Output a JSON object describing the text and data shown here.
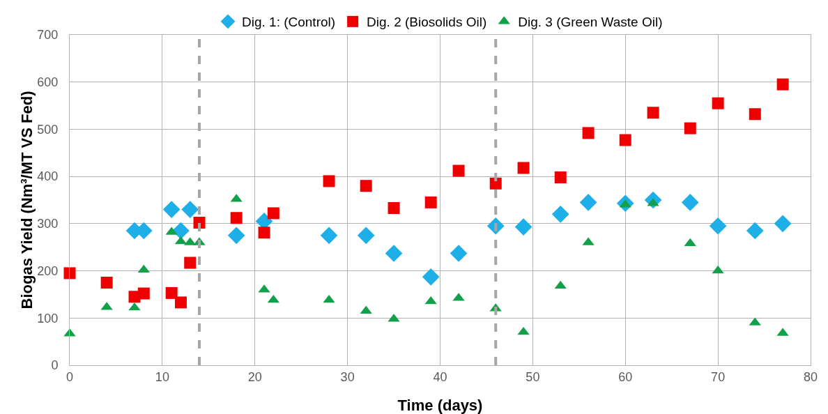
{
  "chart_data": {
    "type": "scatter",
    "xlabel": "Time (days)",
    "ylabel": "Biogas Yield (Nm³/MT VS Fed)",
    "xlim": [
      0,
      80
    ],
    "xticks": [
      0,
      10,
      20,
      30,
      40,
      50,
      60,
      70,
      80
    ],
    "ylim": [
      0,
      700
    ],
    "yticks": [
      0,
      100,
      200,
      300,
      400,
      500,
      600,
      700
    ],
    "grid": true,
    "legend": "top",
    "series": [
      {
        "name": "Dig. 1: (Control)",
        "color": "#1eaee8",
        "marker": "diamond",
        "x": [
          7,
          8,
          11,
          12,
          13,
          18,
          21,
          28,
          32,
          35,
          39,
          42,
          46,
          49,
          53,
          56,
          60,
          63,
          67,
          70,
          74,
          77
        ],
        "values": [
          285,
          285,
          330,
          285,
          330,
          275,
          305,
          275,
          275,
          237,
          187,
          237,
          295,
          293,
          320,
          345,
          343,
          350,
          345,
          295,
          285,
          300
        ]
      },
      {
        "name": "Dig. 2 (Biosolids Oil)",
        "color": "#ee0000",
        "marker": "square",
        "x": [
          0,
          4,
          7,
          8,
          11,
          12,
          13,
          14,
          18,
          21,
          22,
          28,
          32,
          35,
          39,
          42,
          46,
          49,
          53,
          56,
          60,
          63,
          67,
          70,
          74,
          77
        ],
        "values": [
          195,
          175,
          145,
          152,
          153,
          133,
          217,
          302,
          312,
          281,
          322,
          390,
          380,
          333,
          345,
          412,
          385,
          418,
          398,
          492,
          477,
          535,
          502,
          555,
          532,
          595
        ]
      },
      {
        "name": "Dig. 3 (Green Waste Oil)",
        "color": "#13a04a",
        "marker": "triangle",
        "x": [
          0,
          4,
          7,
          8,
          11,
          12,
          13,
          14,
          18,
          21,
          22,
          28,
          32,
          35,
          39,
          42,
          46,
          49,
          53,
          56,
          60,
          63,
          67,
          70,
          74,
          77
        ],
        "values": [
          67,
          123,
          122,
          202,
          282,
          262,
          260,
          260,
          352,
          160,
          138,
          138,
          115,
          98,
          135,
          142,
          120,
          70,
          168,
          260,
          340,
          343,
          258,
          200,
          90,
          68
        ]
      }
    ],
    "ref_lines": [
      {
        "axis": "x",
        "value": 14,
        "color": "#a6a6a6",
        "line_style": "dashed"
      },
      {
        "axis": "x",
        "value": 46,
        "color": "#a6a6a6",
        "line_style": "dashed"
      }
    ]
  }
}
